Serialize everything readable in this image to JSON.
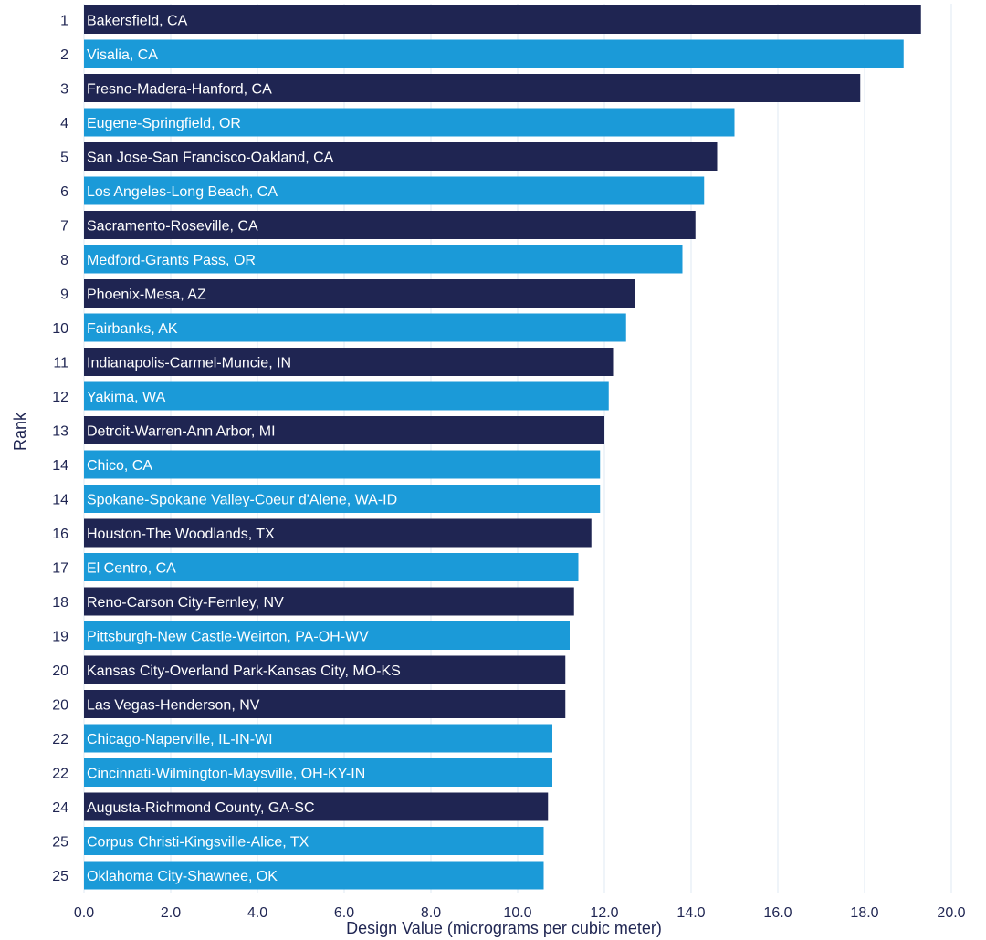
{
  "chart_data": {
    "type": "bar",
    "orientation": "horizontal",
    "xlabel": "Design Value (micrograms per cubic meter)",
    "ylabel": "Rank",
    "xlim": [
      0,
      20
    ],
    "xticks": [
      "0.0",
      "2.0",
      "4.0",
      "6.0",
      "8.0",
      "10.0",
      "12.0",
      "14.0",
      "16.0",
      "18.0",
      "20.0"
    ],
    "grid": "vertical",
    "colors": {
      "dark": "#1f2552",
      "light": "#1b9ad8",
      "grid": "#dfe8f3",
      "text": "#1f2552"
    },
    "rows": [
      {
        "rank": "1",
        "label": "Bakersfield, CA",
        "value": 19.3,
        "color": "dark"
      },
      {
        "rank": "2",
        "label": "Visalia, CA",
        "value": 18.9,
        "color": "light"
      },
      {
        "rank": "3",
        "label": "Fresno-Madera-Hanford, CA",
        "value": 17.9,
        "color": "dark"
      },
      {
        "rank": "4",
        "label": "Eugene-Springfield, OR",
        "value": 15.0,
        "color": "light"
      },
      {
        "rank": "5",
        "label": "San Jose-San Francisco-Oakland, CA",
        "value": 14.6,
        "color": "dark"
      },
      {
        "rank": "6",
        "label": "Los Angeles-Long Beach, CA",
        "value": 14.3,
        "color": "light"
      },
      {
        "rank": "7",
        "label": "Sacramento-Roseville, CA",
        "value": 14.1,
        "color": "dark"
      },
      {
        "rank": "8",
        "label": "Medford-Grants Pass, OR",
        "value": 13.8,
        "color": "light"
      },
      {
        "rank": "9",
        "label": "Phoenix-Mesa, AZ",
        "value": 12.7,
        "color": "dark"
      },
      {
        "rank": "10",
        "label": "Fairbanks, AK",
        "value": 12.5,
        "color": "light"
      },
      {
        "rank": "11",
        "label": "Indianapolis-Carmel-Muncie, IN",
        "value": 12.2,
        "color": "dark"
      },
      {
        "rank": "12",
        "label": "Yakima, WA",
        "value": 12.1,
        "color": "light"
      },
      {
        "rank": "13",
        "label": "Detroit-Warren-Ann Arbor, MI",
        "value": 12.0,
        "color": "dark"
      },
      {
        "rank": "14",
        "label": "Chico, CA",
        "value": 11.9,
        "color": "light"
      },
      {
        "rank": "14",
        "label": "Spokane-Spokane Valley-Coeur d'Alene, WA-ID",
        "value": 11.9,
        "color": "light"
      },
      {
        "rank": "16",
        "label": "Houston-The Woodlands, TX",
        "value": 11.7,
        "color": "dark"
      },
      {
        "rank": "17",
        "label": "El Centro, CA",
        "value": 11.4,
        "color": "light"
      },
      {
        "rank": "18",
        "label": "Reno-Carson City-Fernley, NV",
        "value": 11.3,
        "color": "dark"
      },
      {
        "rank": "19",
        "label": "Pittsburgh-New Castle-Weirton, PA-OH-WV",
        "value": 11.2,
        "color": "light"
      },
      {
        "rank": "20",
        "label": "Kansas City-Overland Park-Kansas City, MO-KS",
        "value": 11.1,
        "color": "dark"
      },
      {
        "rank": "20",
        "label": "Las Vegas-Henderson, NV",
        "value": 11.1,
        "color": "dark"
      },
      {
        "rank": "22",
        "label": "Chicago-Naperville, IL-IN-WI",
        "value": 10.8,
        "color": "light"
      },
      {
        "rank": "22",
        "label": "Cincinnati-Wilmington-Maysville, OH-KY-IN",
        "value": 10.8,
        "color": "light"
      },
      {
        "rank": "24",
        "label": "Augusta-Richmond County, GA-SC",
        "value": 10.7,
        "color": "dark"
      },
      {
        "rank": "25",
        "label": "Corpus Christi-Kingsville-Alice, TX",
        "value": 10.6,
        "color": "light"
      },
      {
        "rank": "25",
        "label": "Oklahoma City-Shawnee, OK",
        "value": 10.6,
        "color": "light"
      }
    ]
  }
}
